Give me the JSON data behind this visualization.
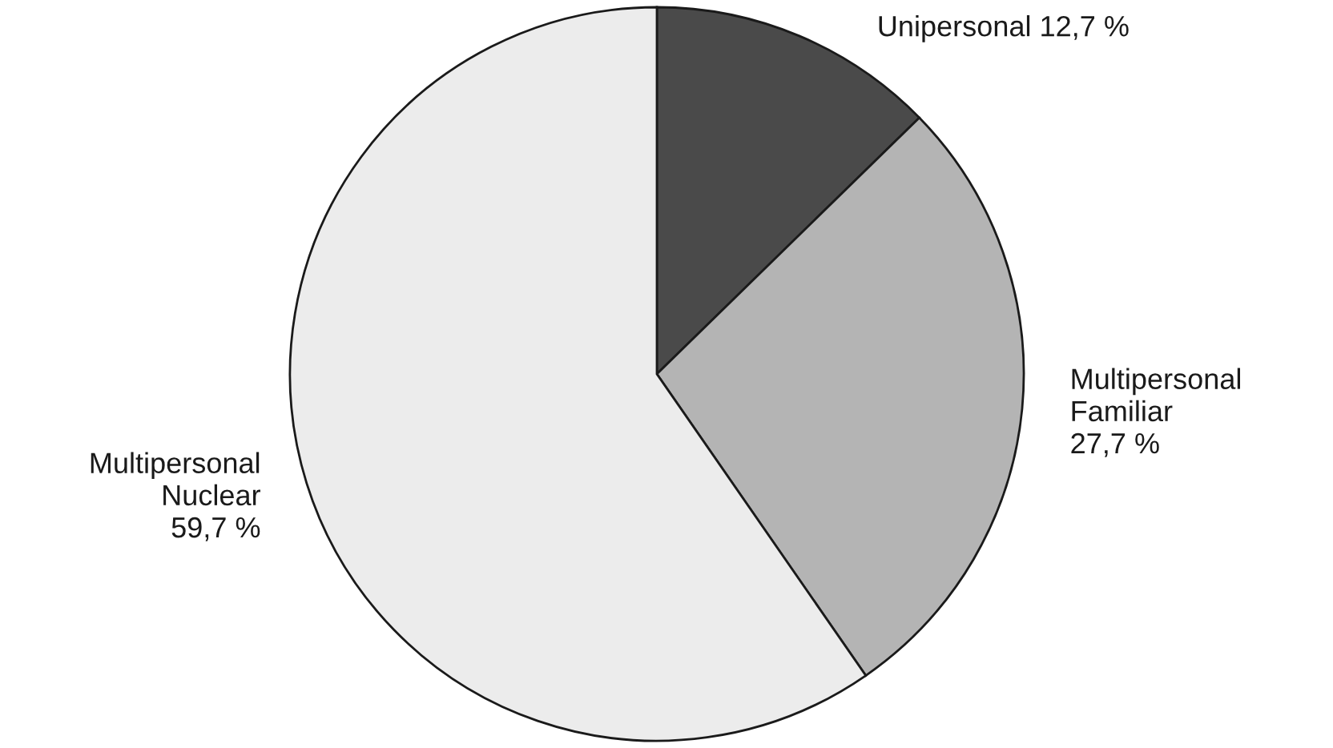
{
  "chart_data": {
    "type": "pie",
    "categories": [
      "Unipersonal",
      "Multipersonal\nFamiliar",
      "Multipersonal\nNuclear"
    ],
    "values": [
      12.7,
      27.7,
      59.7
    ],
    "value_labels": [
      "12,7 %",
      "27,7 %",
      "59,7 %"
    ],
    "colors": [
      "#4a4a4a",
      "#b4b4b4",
      "#ececec"
    ],
    "legend": false
  }
}
